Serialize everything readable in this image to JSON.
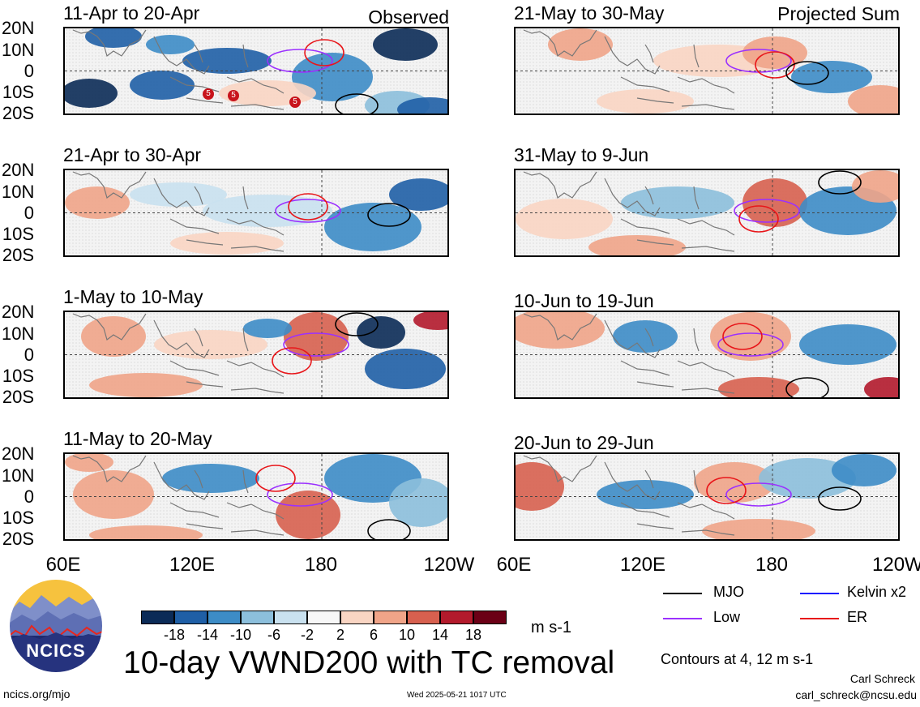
{
  "panels": [
    {
      "title": "11-Apr to 20-Apr",
      "tag": "Observed"
    },
    {
      "title": "21-Apr to 30-Apr",
      "tag": ""
    },
    {
      "title": "1-May to 10-May",
      "tag": ""
    },
    {
      "title": "11-May to 20-May",
      "tag": ""
    },
    {
      "title": "21-May to 30-May",
      "tag": "Projected Sum"
    },
    {
      "title": "31-May to 9-Jun",
      "tag": ""
    },
    {
      "title": "10-Jun to 19-Jun",
      "tag": ""
    },
    {
      "title": "20-Jun to 29-Jun",
      "tag": ""
    }
  ],
  "lat_labels": [
    "20N",
    "10N",
    "0",
    "10S",
    "20S"
  ],
  "lon_labels": [
    "60E",
    "120E",
    "180",
    "120W"
  ],
  "tc_markers": [
    "5",
    "5",
    "5"
  ],
  "colorbar": {
    "colors": [
      "#0b2b57",
      "#1f5fa6",
      "#3d8cc6",
      "#8cbfdc",
      "#c9e1ef",
      "#f7f7f7",
      "#f9d5c3",
      "#f0a488",
      "#d7604f",
      "#b31a2c",
      "#6b0016"
    ],
    "tick_labels": [
      "-18",
      "-14",
      "-10",
      "-6",
      "-2",
      "2",
      "6",
      "10",
      "14",
      "18"
    ],
    "units": "m s-1"
  },
  "legend": {
    "items": [
      {
        "label": "MJO",
        "color": "#000000"
      },
      {
        "label": "Kelvin x2",
        "color": "#1a1aff"
      },
      {
        "label": "Low",
        "color": "#9b30ff"
      },
      {
        "label": "ER",
        "color": "#e8161a"
      }
    ],
    "contours_note": "Contours at 4, 12 m s-1"
  },
  "main_title": "10-day VWND200 with TC removal",
  "logo_text": "NCICS",
  "footer": {
    "left": "ncics.org/mjo",
    "center": "Wed 2025-05-21 1017 UTC",
    "author": "Carl Schreck",
    "email": "carl_schreck@ncsu.edu"
  }
}
